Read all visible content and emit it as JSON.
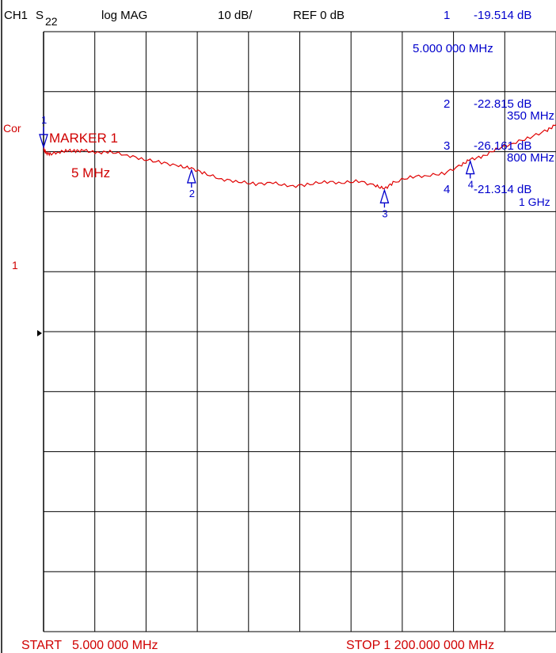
{
  "header": {
    "channel": "CH1",
    "param_s": "S",
    "param_sub": "22",
    "format": "log MAG",
    "scale": "10 dB/",
    "ref": "REF 0 dB"
  },
  "side": {
    "cor": "Cor",
    "ref_pos_label": "1"
  },
  "active_marker": {
    "title": "MARKER 1",
    "freq": "5 MHz"
  },
  "marker_readout": {
    "m1_id": "1",
    "m1_value": "-19.514 dB",
    "m1_freq": "5.000 000 MHz",
    "m2_id": "2",
    "m2_value": "-22.815 dB",
    "m2_freq": "350 MHz",
    "m3_id": "3",
    "m3_value": "-26.161 dB",
    "m3_freq": "800 MHz",
    "m4_id": "4",
    "m4_value": "-21.314 dB",
    "m4_freq": "1 GHz"
  },
  "footer": {
    "start": "START   5.000 000 MHz",
    "stop": "STOP 1 200.000 000 MHz"
  },
  "colors": {
    "grid": "#000000",
    "trace": "#e00000",
    "marker": "#0000cc",
    "text_red": "#d00000",
    "text_blue": "#0000cc"
  },
  "chart_data": {
    "type": "line",
    "x_unit": "MHz",
    "y_unit": "dB",
    "xlim": [
      5,
      1200
    ],
    "ylim": [
      -100,
      0
    ],
    "grid": true,
    "x_divisions": 10,
    "y_divisions": 10,
    "series": [
      {
        "x": [
          5,
          10,
          20,
          40,
          60,
          80,
          100,
          130,
          160,
          200,
          240,
          280,
          320,
          350,
          380,
          420,
          460,
          500,
          540,
          580,
          620,
          660,
          700,
          740,
          780,
          800,
          820,
          860,
          900,
          940,
          980,
          1000,
          1030,
          1060,
          1100,
          1140,
          1180,
          1200
        ],
        "y": [
          -19.5,
          -20.2,
          -20.4,
          -20.1,
          -19.8,
          -19.9,
          -19.8,
          -20.2,
          -20.0,
          -20.6,
          -21.3,
          -21.8,
          -22.4,
          -22.8,
          -23.6,
          -24.6,
          -25.0,
          -25.4,
          -25.2,
          -25.8,
          -25.5,
          -25.0,
          -25.2,
          -24.9,
          -25.7,
          -26.2,
          -25.2,
          -24.2,
          -24.0,
          -23.6,
          -22.2,
          -21.3,
          -20.8,
          -19.6,
          -18.6,
          -17.6,
          -16.4,
          -15.5
        ]
      }
    ],
    "markers": [
      {
        "id": "1",
        "x": 5,
        "y": -19.514
      },
      {
        "id": "2",
        "x": 350,
        "y": -22.815
      },
      {
        "id": "3",
        "x": 800,
        "y": -26.161
      },
      {
        "id": "4",
        "x": 1000,
        "y": -21.314
      }
    ]
  }
}
